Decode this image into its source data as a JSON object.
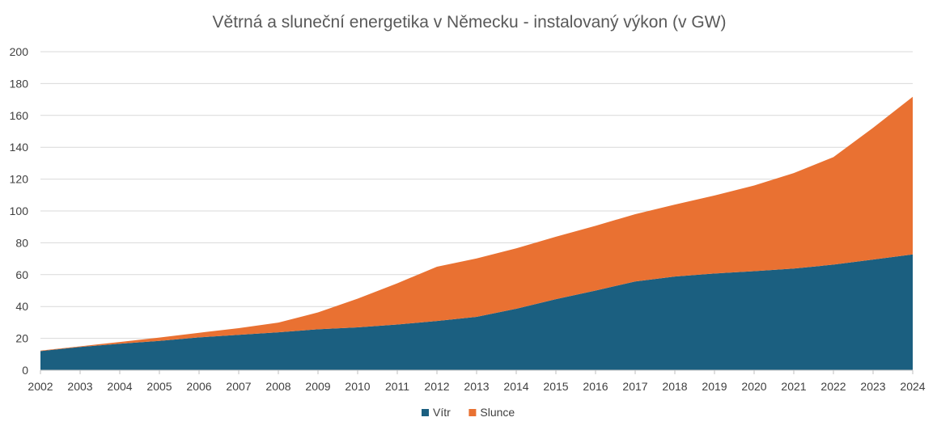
{
  "chart_data": {
    "type": "area",
    "stacked": true,
    "title": "Větrná a sluneční energetika v Německu - instalovaný výkon (v GW)",
    "xlabel": "",
    "ylabel": "",
    "ylim": [
      0,
      200
    ],
    "yticks": [
      0,
      20,
      40,
      60,
      80,
      100,
      120,
      140,
      160,
      180,
      200
    ],
    "grid": true,
    "legend_position": "bottom",
    "x": [
      "2002",
      "2003",
      "2004",
      "2005",
      "2006",
      "2007",
      "2008",
      "2009",
      "2010",
      "2011",
      "2012",
      "2013",
      "2014",
      "2015",
      "2016",
      "2017",
      "2018",
      "2019",
      "2020",
      "2021",
      "2022",
      "2023",
      "2024"
    ],
    "series": [
      {
        "name": "Vítr",
        "color": "#1b5f80",
        "values": [
          12,
          14.6,
          16.6,
          18.4,
          20.6,
          22.2,
          23.8,
          25.7,
          26.9,
          28.7,
          30.9,
          33.5,
          38.6,
          44.6,
          50,
          55.7,
          58.8,
          60.7,
          62.2,
          63.8,
          66.3,
          69.5,
          72.7
        ]
      },
      {
        "name": "Slunce",
        "color": "#e97132",
        "values": [
          0.3,
          0.4,
          1.1,
          2.1,
          2.9,
          4.2,
          6.1,
          10.6,
          18,
          25.9,
          34.1,
          36.7,
          37.9,
          39.2,
          40.7,
          42.3,
          45.2,
          49,
          53.8,
          60,
          67.5,
          82.7,
          99
        ]
      }
    ]
  }
}
